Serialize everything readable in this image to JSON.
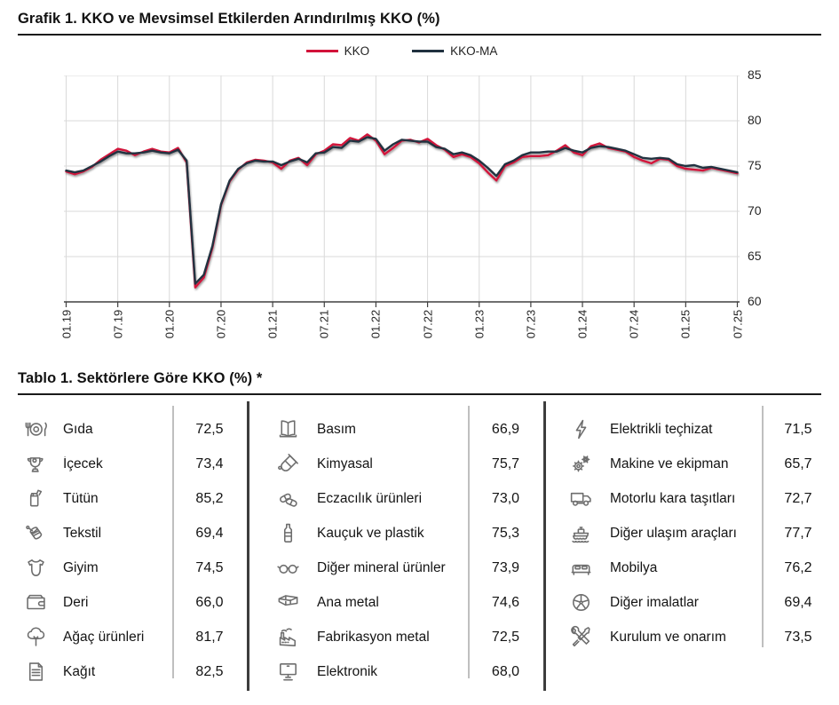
{
  "grafik": {
    "title": "Grafik 1. KKO ve Mevsimsel Etkilerden Arındırılmış KKO (%)"
  },
  "chart_data": {
    "type": "line",
    "title": "KKO ve Mevsimsel Etkilerden Arındırılmış KKO (%)",
    "grid": true,
    "legend_position": "top",
    "y_axis_side": "right",
    "ylim": [
      60,
      85
    ],
    "yticks": [
      60,
      65,
      70,
      75,
      80,
      85
    ],
    "x_start": "01.19",
    "x_end": "07.25",
    "x_frequency": "monthly",
    "xtick_labels": [
      "01.19",
      "07.19",
      "01.20",
      "07.20",
      "01.21",
      "07.21",
      "01.22",
      "07.22",
      "01.23",
      "07.23",
      "01.24",
      "07.24",
      "01.25",
      "07.25"
    ],
    "xtick_month_step": 6,
    "series": [
      {
        "name": "KKO",
        "color": "#d2123a",
        "values": [
          74.4,
          74.1,
          74.4,
          74.9,
          75.7,
          76.3,
          76.9,
          76.7,
          76.2,
          76.6,
          76.9,
          76.6,
          76.5,
          77.0,
          75.4,
          61.6,
          62.7,
          66.0,
          70.7,
          73.3,
          74.6,
          75.4,
          75.7,
          75.6,
          75.4,
          74.7,
          75.6,
          75.9,
          75.1,
          76.3,
          76.7,
          77.4,
          77.3,
          78.1,
          77.8,
          78.5,
          77.8,
          76.3,
          77.0,
          77.8,
          77.9,
          77.6,
          78.0,
          77.3,
          76.8,
          76.0,
          76.3,
          76.0,
          75.3,
          74.3,
          73.4,
          75.0,
          75.4,
          76.0,
          76.1,
          76.1,
          76.2,
          76.7,
          77.3,
          76.5,
          76.2,
          77.2,
          77.5,
          77.0,
          76.8,
          76.6,
          76.0,
          75.6,
          75.3,
          75.8,
          75.7,
          75.0,
          74.7,
          74.6,
          74.5,
          74.8,
          74.6,
          74.4,
          74.2
        ]
      },
      {
        "name": "KKO-MA",
        "color": "#20313f",
        "values": [
          74.5,
          74.3,
          74.5,
          75.0,
          75.5,
          76.1,
          76.6,
          76.4,
          76.4,
          76.5,
          76.7,
          76.5,
          76.4,
          76.8,
          75.6,
          62.0,
          63.0,
          66.2,
          70.8,
          73.4,
          74.7,
          75.3,
          75.6,
          75.5,
          75.5,
          75.1,
          75.5,
          75.8,
          75.4,
          76.4,
          76.5,
          77.1,
          77.0,
          77.8,
          77.7,
          78.2,
          78.0,
          76.7,
          77.4,
          77.9,
          77.8,
          77.7,
          77.7,
          77.1,
          76.9,
          76.3,
          76.5,
          76.2,
          75.6,
          74.8,
          73.9,
          75.2,
          75.6,
          76.2,
          76.5,
          76.5,
          76.6,
          76.6,
          77.0,
          76.7,
          76.5,
          77.0,
          77.2,
          77.1,
          76.9,
          76.7,
          76.3,
          75.9,
          75.8,
          75.9,
          75.8,
          75.2,
          75.0,
          75.1,
          74.8,
          74.9,
          74.7,
          74.5,
          74.3
        ]
      }
    ]
  },
  "tablo": {
    "title": "Tablo 1. Sektörlere Göre KKO (%) *",
    "columns": [
      {
        "rows": [
          {
            "icon": "plate-cutlery-icon",
            "label": "Gıda",
            "value": "72,5"
          },
          {
            "icon": "teacup-icon",
            "label": "İçecek",
            "value": "73,4"
          },
          {
            "icon": "lighter-icon",
            "label": "Tütün",
            "value": "85,2"
          },
          {
            "icon": "thread-spool-icon",
            "label": "Tekstil",
            "value": "69,4"
          },
          {
            "icon": "baby-onesie-icon",
            "label": "Giyim",
            "value": "74,5"
          },
          {
            "icon": "wallet-icon",
            "label": "Deri",
            "value": "66,0"
          },
          {
            "icon": "tree-icon",
            "label": "Ağaç ürünleri",
            "value": "81,7"
          },
          {
            "icon": "document-icon",
            "label": "Kağıt",
            "value": "82,5"
          }
        ]
      },
      {
        "rows": [
          {
            "icon": "open-book-icon",
            "label": "Basım",
            "value": "66,9"
          },
          {
            "icon": "test-tube-icon",
            "label": "Kimyasal",
            "value": "75,7"
          },
          {
            "icon": "pills-icon",
            "label": "Eczacılık ürünleri",
            "value": "73,0"
          },
          {
            "icon": "bottle-icon",
            "label": "Kauçuk ve plastik",
            "value": "75,3"
          },
          {
            "icon": "eyeglasses-icon",
            "label": "Diğer mineral ürünler",
            "value": "73,9"
          },
          {
            "icon": "steel-beam-icon",
            "label": "Ana metal",
            "value": "74,6"
          },
          {
            "icon": "factory-icon",
            "label": "Fabrikasyon metal",
            "value": "72,5"
          },
          {
            "icon": "monitor-icon",
            "label": "Elektronik",
            "value": "68,0"
          }
        ]
      },
      {
        "rows": [
          {
            "icon": "lightning-icon",
            "label": "Elektrikli teçhizat",
            "value": "71,5"
          },
          {
            "icon": "gears-icon",
            "label": "Makine ve ekipman",
            "value": "65,7"
          },
          {
            "icon": "truck-icon",
            "label": "Motorlu kara taşıtları",
            "value": "72,7"
          },
          {
            "icon": "ship-icon",
            "label": "Diğer ulaşım araçları",
            "value": "77,7"
          },
          {
            "icon": "bed-icon",
            "label": "Mobilya",
            "value": "76,2"
          },
          {
            "icon": "aperture-icon",
            "label": "Diğer imalatlar",
            "value": "69,4"
          },
          {
            "icon": "tools-icon",
            "label": "Kurulum ve onarım",
            "value": "73,5"
          }
        ]
      }
    ]
  },
  "colors": {
    "kko": "#d2123a",
    "kko_ma": "#20313f",
    "grid": "#d9d9d9",
    "axis": "#404040",
    "divider_light": "#bfbfbf",
    "divider_dark": "#3d3d3d",
    "icon": "#6e6e6e"
  }
}
